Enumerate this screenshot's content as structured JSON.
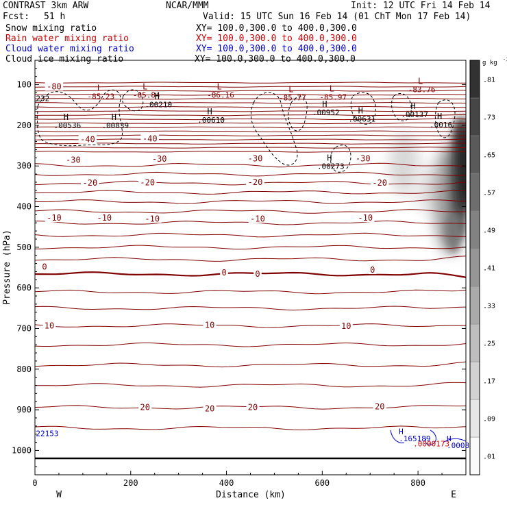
{
  "header": {
    "model": "CONTRAST  3km ARW",
    "center": "NCAR/MMM",
    "init": "Init: 12 UTC Fri 14 Feb 14",
    "fcst_label": "Fcst:",
    "fcst_value": "51 h",
    "valid": "Valid: 15 UTC Sun 16 Feb 14 (01 ChT Mon 17 Feb 14)",
    "fields": [
      {
        "name": "Snow mixing ratio",
        "xy": "XY= 100.0,300.0 to 400.0,300.0",
        "color": "#000000"
      },
      {
        "name": "Rain water mixing ratio",
        "xy": "XY= 100.0,300.0 to 400.0,300.0",
        "color": "#cc0000"
      },
      {
        "name": "Cloud water mixing ratio",
        "xy": "XY= 100.0,300.0 to 400.0,300.0",
        "color": "#0000cc"
      },
      {
        "name": "Cloud ice mixing ratio",
        "xy": "XY= 100.0,300.0 to 400.0,300.0",
        "color": "#000000"
      }
    ]
  },
  "chart_data": {
    "type": "cross-section contour",
    "xlabel": "Distance (km)",
    "ylabel": "Pressure (hPa)",
    "xlim": [
      0,
      900
    ],
    "ylim": [
      1060,
      40
    ],
    "x_ticks": [
      0,
      200,
      400,
      600,
      800
    ],
    "y_ticks": [
      100,
      200,
      300,
      400,
      500,
      600,
      700,
      800,
      900,
      1000
    ],
    "x_end_labels": {
      "left": "W",
      "right": "E"
    },
    "colorbar": {
      "unit": "g kg",
      "unit_exp": "-1",
      "levels": [
        0.01,
        0.09,
        0.17,
        0.25,
        0.33,
        0.41,
        0.49,
        0.57,
        0.65,
        0.73,
        0.81
      ],
      "level_labels": [
        ".01",
        ".09",
        ".17",
        ".25",
        ".33",
        ".41",
        ".49",
        ".57",
        ".65",
        ".73",
        ".81"
      ]
    },
    "isotherm_color": "#800000",
    "isotherm_labels": [
      {
        "text": "-80",
        "x": 40,
        "p": 105
      },
      {
        "text": "-40",
        "x": 110,
        "p": 235
      },
      {
        "text": "-40",
        "x": 240,
        "p": 233
      },
      {
        "text": "-30",
        "x": 80,
        "p": 285
      },
      {
        "text": "-30",
        "x": 260,
        "p": 283
      },
      {
        "text": "-30",
        "x": 460,
        "p": 282
      },
      {
        "text": "-30",
        "x": 685,
        "p": 282
      },
      {
        "text": "-20",
        "x": 115,
        "p": 342
      },
      {
        "text": "-20",
        "x": 235,
        "p": 341
      },
      {
        "text": "-20",
        "x": 460,
        "p": 340
      },
      {
        "text": "-20",
        "x": 720,
        "p": 342
      },
      {
        "text": "-10",
        "x": 40,
        "p": 428
      },
      {
        "text": "-10",
        "x": 145,
        "p": 428
      },
      {
        "text": "-10",
        "x": 245,
        "p": 430
      },
      {
        "text": "-10",
        "x": 465,
        "p": 430
      },
      {
        "text": "-10",
        "x": 690,
        "p": 428
      },
      {
        "text": "0",
        "x": 20,
        "p": 548
      },
      {
        "text": "0",
        "x": 395,
        "p": 563
      },
      {
        "text": "0",
        "x": 465,
        "p": 566
      },
      {
        "text": "0",
        "x": 705,
        "p": 556
      },
      {
        "text": "10",
        "x": 30,
        "p": 693
      },
      {
        "text": "10",
        "x": 365,
        "p": 692
      },
      {
        "text": "10",
        "x": 650,
        "p": 694
      },
      {
        "text": "20",
        "x": 230,
        "p": 894
      },
      {
        "text": "20",
        "x": 365,
        "p": 897
      },
      {
        "text": "20",
        "x": 455,
        "p": 894
      },
      {
        "text": "20",
        "x": 720,
        "p": 892
      }
    ],
    "extrema": [
      {
        "type": "L",
        "value": "-85.23",
        "x": 135,
        "p": 115,
        "color": "#800000"
      },
      {
        "type": "L",
        "value": "-85.84",
        "x": 230,
        "p": 112,
        "color": "#800000"
      },
      {
        "type": "L",
        "value": "-86.16",
        "x": 385,
        "p": 112,
        "color": "#800000"
      },
      {
        "type": "L",
        "value": "-85.77",
        "x": 535,
        "p": 118,
        "color": "#800000"
      },
      {
        "type": "L",
        "value": "-85.97",
        "x": 620,
        "p": 117,
        "color": "#800000"
      },
      {
        "type": "L",
        "value": "-83.76",
        "x": 805,
        "p": 98,
        "color": "#800000"
      },
      {
        "type": "H",
        "value": ".00210",
        "x": 255,
        "p": 135,
        "color": "#000000"
      },
      {
        "type": "H",
        "value": ".00536",
        "x": 65,
        "p": 187,
        "color": "#000000"
      },
      {
        "type": "H",
        "value": ".00839",
        "x": 165,
        "p": 187,
        "color": "#000000"
      },
      {
        "type": "H",
        "value": ".00610",
        "x": 365,
        "p": 173,
        "color": "#000000"
      },
      {
        "type": "H",
        "value": ".00952",
        "x": 605,
        "p": 155,
        "color": "#000000"
      },
      {
        "type": "H",
        "value": ".00631",
        "x": 680,
        "p": 171,
        "color": "#000000"
      },
      {
        "type": "H",
        "value": ".00137",
        "x": 790,
        "p": 160,
        "color": "#000000"
      },
      {
        "type": "H",
        "value": ".00273",
        "x": 615,
        "p": 287,
        "color": "#000000"
      },
      {
        "type": "H",
        "value": ".0016",
        "x": 845,
        "p": 185,
        "color": "#000000"
      }
    ],
    "edge_labels": [
      {
        "text": "232",
        "x": 2,
        "p": 140,
        "color": "#000000"
      },
      {
        "text": "22153",
        "x": 2,
        "p": 965,
        "color": "#0000cc"
      },
      {
        "text": ".165189",
        "x": 760,
        "p": 977,
        "color": "#0000cc"
      },
      {
        "text": "H",
        "x": 760,
        "p": 960,
        "color": "#0000cc"
      },
      {
        "text": "H",
        "x": 860,
        "p": 977,
        "color": "#0000cc"
      },
      {
        "text": ".0008",
        "x": 860,
        "p": 994,
        "color": "#0000cc"
      },
      {
        "text": ".0000173",
        "x": 790,
        "p": 990,
        "color": "#cc0000"
      }
    ]
  }
}
